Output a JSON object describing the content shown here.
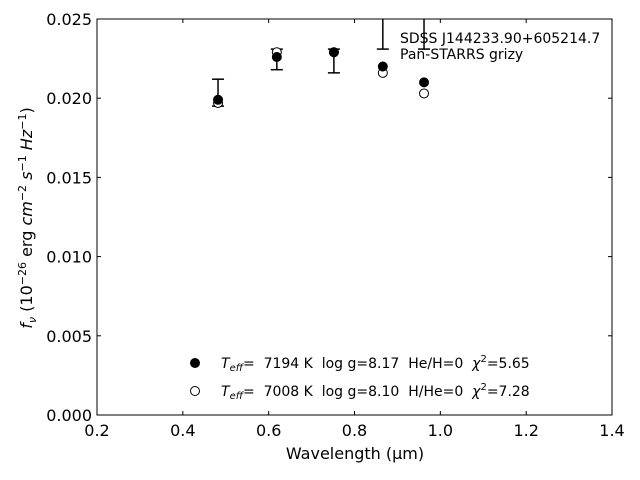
{
  "chart_data": {
    "type": "scatter",
    "xlabel": "Wavelength (μm)",
    "ylabel": "f_ν (10^-26 erg cm^-2 s^-1 Hz^-1)",
    "xlim": [
      0.2,
      1.4
    ],
    "ylim": [
      0.0,
      0.025
    ],
    "x_ticks": [
      "0.2",
      "0.4",
      "0.6",
      "0.8",
      "1.0",
      "1.2",
      "1.4"
    ],
    "y_ticks": [
      "0.000",
      "0.005",
      "0.010",
      "0.015",
      "0.020",
      "0.025"
    ],
    "grid": false,
    "legend_position": "bottom-center",
    "annotations": [
      "SDSS J144233.90+605214.7",
      "Pan-STARRS grizy"
    ],
    "observed": {
      "x": [
        0.482,
        0.619,
        0.752,
        0.866,
        0.962
      ],
      "y": [
        0.0203,
        0.0224,
        0.0224,
        0.0244,
        0.0244
      ],
      "yerr_low": [
        0.0008,
        0.0006,
        0.0008,
        0.0013,
        0.0013
      ],
      "yerr_high": [
        0.0009,
        0.0007,
        0.0007,
        0.0013,
        0.0013
      ]
    },
    "series": [
      {
        "marker": "filled-circle",
        "legend": {
          "teff_label": "T",
          "teff_sub": "eff",
          "eq": "=  7194 K  log g=8.17  He/H=0  ",
          "chi_label": "χ",
          "chi_sup": "2",
          "chi_eq": "=5.65"
        },
        "x": [
          0.482,
          0.619,
          0.752,
          0.866,
          0.962
        ],
        "y": [
          0.0199,
          0.0226,
          0.0229,
          0.022,
          0.021
        ]
      },
      {
        "marker": "open-circle",
        "legend": {
          "teff_label": "T",
          "teff_sub": "eff",
          "eq": "=  7008 K  log g=8.10  H/He=0  ",
          "chi_label": "χ",
          "chi_sup": "2",
          "chi_eq": "=7.28"
        },
        "x": [
          0.482,
          0.619,
          0.752,
          0.866,
          0.962
        ],
        "y": [
          0.0197,
          0.0229,
          0.0229,
          0.0216,
          0.0203
        ]
      }
    ],
    "colors": {
      "marker": "#000000",
      "axes": "#000000",
      "background": "#ffffff"
    }
  }
}
